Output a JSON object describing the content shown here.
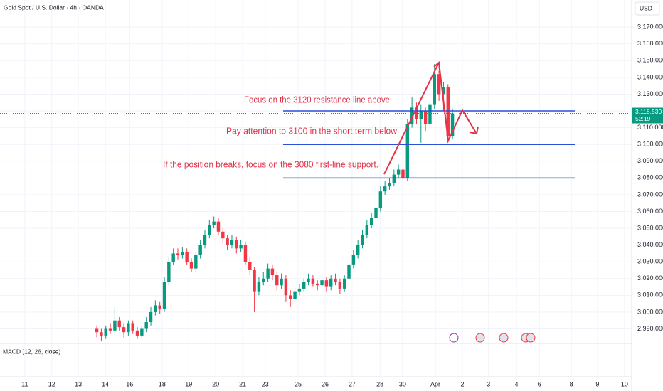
{
  "chart_data": {
    "type": "candlestick",
    "title": "Gold Spot / U.S. Dollar · 4h · OANDA",
    "currency": "USD",
    "indicator": "MACD (12, 26, close)",
    "up_color": "#089981",
    "down_color": "#f23645",
    "level_color": "#2b4fd8",
    "grid": true,
    "open": [
      2990,
      2988,
      2986,
      2990,
      2989,
      2995,
      2991,
      2988,
      2993,
      2989,
      2986,
      2990,
      2994,
      3000,
      3004,
      3002,
      3018,
      3030,
      3035,
      3034,
      3036,
      3030,
      3026,
      3034,
      3040,
      3046,
      3052,
      3054,
      3048,
      3044,
      3040,
      3043,
      3038,
      3040,
      3030,
      3025,
      3012,
      3018,
      3020,
      3026,
      3022,
      3016,
      3020,
      3010,
      3008,
      3012,
      3014,
      3018,
      3020,
      3017,
      3016,
      3019,
      3015,
      3020,
      3018,
      3014,
      3020,
      3028,
      3034,
      3040,
      3046,
      3052,
      3056,
      3062,
      3072,
      3075,
      3077,
      3082,
      3085,
      3080,
      3112,
      3122,
      3115,
      3120,
      3112,
      3124,
      3142,
      3130,
      3134,
      3105
    ],
    "high": [
      2992,
      2990,
      2992,
      2993,
      3003,
      2997,
      2993,
      2995,
      2995,
      2991,
      2992,
      2997,
      3003,
      3007,
      3006,
      3021,
      3033,
      3038,
      3038,
      3039,
      3038,
      3032,
      3036,
      3043,
      3049,
      3055,
      3057,
      3056,
      3050,
      3046,
      3046,
      3045,
      3043,
      3042,
      3033,
      3027,
      3021,
      3024,
      3029,
      3028,
      3024,
      3023,
      3022,
      3013,
      3015,
      3017,
      3020,
      3023,
      3022,
      3019,
      3022,
      3021,
      3022,
      3023,
      3020,
      3022,
      3031,
      3037,
      3043,
      3049,
      3055,
      3059,
      3065,
      3075,
      3078,
      3080,
      3085,
      3088,
      3087,
      3115,
      3128,
      3125,
      3124,
      3122,
      3127,
      3148,
      3144,
      3137,
      3136,
      3121
    ],
    "low": [
      2985,
      2983,
      2984,
      2987,
      2987,
      2989,
      2985,
      2986,
      2987,
      2984,
      2984,
      2988,
      2992,
      2998,
      2999,
      3000,
      3016,
      3028,
      3031,
      3032,
      3028,
      3024,
      3024,
      3032,
      3038,
      3044,
      3050,
      3046,
      3041,
      3037,
      3038,
      3035,
      3036,
      3028,
      3022,
      3000,
      3010,
      3016,
      3018,
      3019,
      3013,
      3014,
      3006,
      3003,
      3006,
      3010,
      3012,
      3016,
      3015,
      3013,
      3014,
      3012,
      3013,
      3016,
      3011,
      3012,
      3018,
      3026,
      3032,
      3038,
      3044,
      3050,
      3054,
      3060,
      3070,
      3073,
      3075,
      3080,
      3077,
      3078,
      3110,
      3112,
      3101,
      3108,
      3110,
      3121,
      3126,
      3120,
      3101,
      3103
    ],
    "close": [
      2988,
      2986,
      2990,
      2989,
      2995,
      2991,
      2988,
      2993,
      2989,
      2986,
      2990,
      2994,
      3000,
      3004,
      3002,
      3018,
      3030,
      3035,
      3034,
      3036,
      3030,
      3026,
      3034,
      3040,
      3046,
      3052,
      3054,
      3048,
      3044,
      3040,
      3043,
      3038,
      3040,
      3030,
      3025,
      3012,
      3018,
      3020,
      3026,
      3022,
      3016,
      3020,
      3010,
      3008,
      3012,
      3014,
      3018,
      3020,
      3017,
      3016,
      3019,
      3015,
      3020,
      3018,
      3014,
      3020,
      3028,
      3034,
      3040,
      3046,
      3052,
      3056,
      3062,
      3072,
      3075,
      3077,
      3082,
      3085,
      3080,
      3112,
      3122,
      3115,
      3120,
      3112,
      3124,
      3142,
      3130,
      3134,
      3105,
      3118.53
    ],
    "last_price": {
      "value": 3118.53,
      "label": "3,118.530"
    },
    "countdown": "52:19",
    "levels": [
      3120,
      3100,
      3080
    ],
    "annotations": [
      "Focus on the 3120 resistance line above",
      "Pay attention to 3100 in the short term below",
      "If the position breaks, focus on the 3080 first-line support."
    ],
    "xlim": [
      -21.5,
      118.8
    ],
    "xticks": [
      {
        "value": -16,
        "label": "11"
      },
      {
        "value": -10,
        "label": "12"
      },
      {
        "value": -4.1,
        "label": "13"
      },
      {
        "value": 1.9,
        "label": "14"
      },
      {
        "value": 7.3,
        "label": "16"
      },
      {
        "value": 14.5,
        "label": "18"
      },
      {
        "value": 20.4,
        "label": "19"
      },
      {
        "value": 26.4,
        "label": "20"
      },
      {
        "value": 32.4,
        "label": "21"
      },
      {
        "value": 37.4,
        "label": "23"
      },
      {
        "value": 44.7,
        "label": "25"
      },
      {
        "value": 50.7,
        "label": "26"
      },
      {
        "value": 56.7,
        "label": "27"
      },
      {
        "value": 62.9,
        "label": "28"
      },
      {
        "value": 67.9,
        "label": "30"
      },
      {
        "value": 75.2,
        "label": "Apr"
      },
      {
        "value": 81.2,
        "label": "2"
      },
      {
        "value": 87,
        "label": "3"
      },
      {
        "value": 93.2,
        "label": "4"
      },
      {
        "value": 98.3,
        "label": "6"
      },
      {
        "value": 105.4,
        "label": "8"
      },
      {
        "value": 111.2,
        "label": "9"
      },
      {
        "value": 117.2,
        "label": "10"
      }
    ],
    "ylim": [
      2981.3,
      3186.2
    ],
    "yticks": [
      {
        "value": 2990,
        "label": "2,990.000"
      },
      {
        "value": 3000,
        "label": "3,000.000"
      },
      {
        "value": 3010,
        "label": "3,010.000"
      },
      {
        "value": 3020,
        "label": "3,020.000"
      },
      {
        "value": 3030,
        "label": "3,030.000"
      },
      {
        "value": 3040,
        "label": "3,040.000"
      },
      {
        "value": 3050,
        "label": "3,050.000"
      },
      {
        "value": 3060,
        "label": "3,060.000"
      },
      {
        "value": 3070,
        "label": "3,070.000"
      },
      {
        "value": 3080,
        "label": "3,080.000"
      },
      {
        "value": 3090,
        "label": "3,090.000"
      },
      {
        "value": 3100,
        "label": "3,100.000"
      },
      {
        "value": 3110,
        "label": "3,110.000"
      },
      {
        "value": 3120,
        "label": "3,120.000"
      },
      {
        "value": 3130,
        "label": "3,130.000"
      },
      {
        "value": 3140,
        "label": "3,140.000"
      },
      {
        "value": 3150,
        "label": "3,150.000"
      },
      {
        "value": 3160,
        "label": "3,160.000"
      },
      {
        "value": 3170,
        "label": "3,170.000"
      }
    ]
  }
}
